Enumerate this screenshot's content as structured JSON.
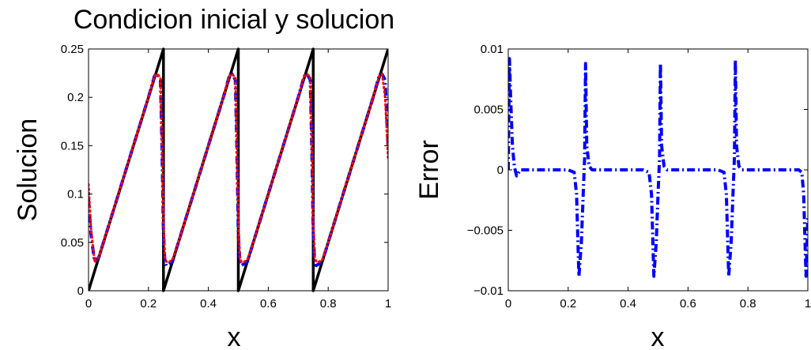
{
  "chart_data": [
    {
      "type": "line",
      "title": "Condicion inicial y solucion",
      "xlabel": "x",
      "ylabel": "Solucion",
      "xlim": [
        0,
        1
      ],
      "ylim": [
        0,
        0.25
      ],
      "grid": false,
      "xticks": [
        "0",
        "0.2",
        "0.4",
        "0.6",
        "0.8",
        "1"
      ],
      "yticks": [
        "0",
        "0.05",
        "0.1",
        "0.15",
        "0.2",
        "0.25"
      ],
      "series": [
        {
          "style": "solid",
          "color": "#000000",
          "x": [
            0.0,
            0.245,
            0.25,
            0.25,
            0.495,
            0.5,
            0.5,
            0.745,
            0.75,
            0.75,
            0.995,
            1.0
          ],
          "y": [
            0.0,
            0.245,
            0.25,
            0.0,
            0.245,
            0.25,
            0.0,
            0.245,
            0.25,
            0.0,
            0.245,
            0.25
          ]
        },
        {
          "style": "dashdot",
          "color": "#0000ff",
          "x": [
            0.0,
            0.008,
            0.02,
            0.035,
            0.05,
            0.1,
            0.15,
            0.2,
            0.22,
            0.23,
            0.24,
            0.245,
            0.25,
            0.255,
            0.26,
            0.27,
            0.28,
            0.3,
            0.35,
            0.4,
            0.45,
            0.47,
            0.48,
            0.49,
            0.495,
            0.5,
            0.505,
            0.51,
            0.52,
            0.53,
            0.55,
            0.6,
            0.65,
            0.7,
            0.72,
            0.73,
            0.74,
            0.745,
            0.75,
            0.755,
            0.76,
            0.77,
            0.78,
            0.8,
            0.85,
            0.9,
            0.95,
            0.97,
            0.98,
            0.99,
            1.0
          ],
          "y": [
            0.095,
            0.06,
            0.03,
            0.035,
            0.05,
            0.1,
            0.15,
            0.2,
            0.222,
            0.224,
            0.218,
            0.15,
            0.06,
            0.03,
            0.026,
            0.028,
            0.03,
            0.05,
            0.1,
            0.15,
            0.2,
            0.222,
            0.224,
            0.218,
            0.15,
            0.06,
            0.03,
            0.026,
            0.028,
            0.03,
            0.05,
            0.1,
            0.15,
            0.2,
            0.222,
            0.224,
            0.218,
            0.15,
            0.06,
            0.03,
            0.026,
            0.028,
            0.03,
            0.05,
            0.1,
            0.15,
            0.2,
            0.222,
            0.224,
            0.218,
            0.15
          ]
        },
        {
          "style": "dotted",
          "color": "#ff0000",
          "x": [
            0.0,
            0.008,
            0.02,
            0.035,
            0.05,
            0.1,
            0.15,
            0.2,
            0.22,
            0.23,
            0.24,
            0.245,
            0.25,
            0.255,
            0.26,
            0.27,
            0.28,
            0.3,
            0.35,
            0.4,
            0.45,
            0.47,
            0.48,
            0.49,
            0.495,
            0.5,
            0.505,
            0.51,
            0.52,
            0.53,
            0.55,
            0.6,
            0.65,
            0.7,
            0.72,
            0.73,
            0.74,
            0.745,
            0.75,
            0.755,
            0.76,
            0.77,
            0.78,
            0.8,
            0.85,
            0.9,
            0.95,
            0.97,
            0.98,
            0.99,
            1.0
          ],
          "y": [
            0.11,
            0.065,
            0.03,
            0.035,
            0.05,
            0.1,
            0.15,
            0.2,
            0.222,
            0.224,
            0.22,
            0.15,
            0.07,
            0.035,
            0.03,
            0.03,
            0.032,
            0.05,
            0.1,
            0.15,
            0.2,
            0.222,
            0.224,
            0.22,
            0.15,
            0.07,
            0.035,
            0.03,
            0.03,
            0.032,
            0.05,
            0.1,
            0.15,
            0.2,
            0.222,
            0.224,
            0.22,
            0.15,
            0.07,
            0.035,
            0.03,
            0.03,
            0.032,
            0.05,
            0.1,
            0.15,
            0.2,
            0.222,
            0.224,
            0.2,
            0.137
          ]
        }
      ]
    },
    {
      "type": "line",
      "title": "",
      "xlabel": "x",
      "ylabel": "Error",
      "xlim": [
        0,
        1
      ],
      "ylim": [
        -0.01,
        0.01
      ],
      "grid": false,
      "xticks": [
        "0",
        "0.2",
        "0.4",
        "0.6",
        "0.8",
        "1"
      ],
      "yticks": [
        "−0.01",
        "−0.005",
        "0",
        "0.005",
        "0.01"
      ],
      "series": [
        {
          "style": "dashdot",
          "color": "#0000ff",
          "x": [
            0.0,
            0.004,
            0.008,
            0.014,
            0.02,
            0.028,
            0.04,
            0.2,
            0.22,
            0.228,
            0.236,
            0.244,
            0.25,
            0.255,
            0.258,
            0.262,
            0.27,
            0.28,
            0.45,
            0.47,
            0.478,
            0.486,
            0.494,
            0.5,
            0.505,
            0.508,
            0.512,
            0.52,
            0.53,
            0.7,
            0.72,
            0.728,
            0.736,
            0.744,
            0.75,
            0.755,
            0.758,
            0.762,
            0.77,
            0.78,
            0.97,
            0.98,
            0.986,
            0.994,
            1.0
          ],
          "y": [
            0.0,
            0.0092,
            0.006,
            0.002,
            0.0003,
            -0.0005,
            0.0,
            0.0,
            -0.0002,
            -0.002,
            -0.0088,
            -0.006,
            -0.002,
            0.001,
            0.0088,
            0.002,
            0.0003,
            0.0,
            0.0,
            -0.0002,
            -0.002,
            -0.0088,
            -0.006,
            -0.002,
            0.001,
            0.0088,
            0.002,
            0.0003,
            0.0,
            0.0,
            -0.0002,
            -0.002,
            -0.0088,
            -0.006,
            -0.002,
            0.001,
            0.0091,
            0.002,
            0.0003,
            0.0,
            0.0,
            -0.0002,
            -0.002,
            -0.0088,
            -0.004
          ]
        }
      ]
    }
  ]
}
